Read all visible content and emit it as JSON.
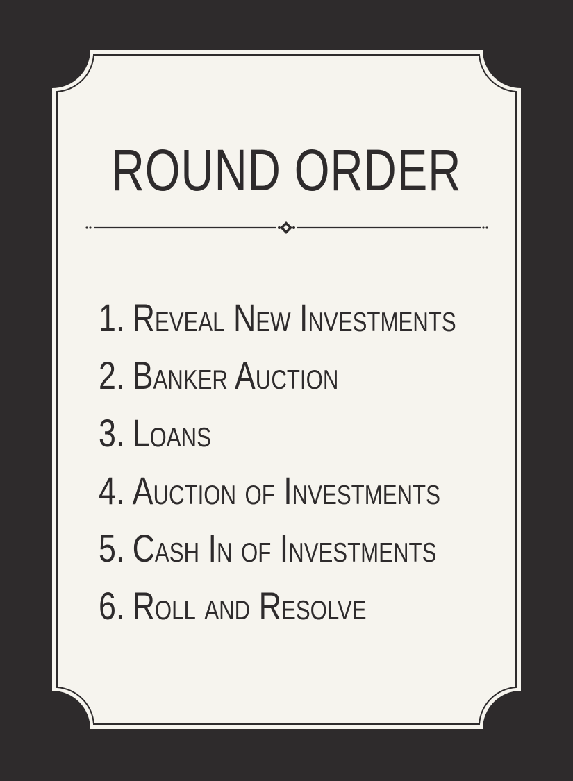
{
  "colors": {
    "background": "#2e2b2c",
    "card": "#f6f4ee",
    "ink": "#2e2b2c"
  },
  "card": {
    "title": "ROUND ORDER",
    "divider_icon": "diamond-ornament-icon",
    "steps": [
      {
        "number": "1.",
        "label": "Reveal New Investments"
      },
      {
        "number": "2.",
        "label": "Banker Auction"
      },
      {
        "number": "3.",
        "label": "Loans"
      },
      {
        "number": "4.",
        "label": "Auction of Investments"
      },
      {
        "number": "5.",
        "label": "Cash In of Investments"
      },
      {
        "number": "6.",
        "label": "Roll and Resolve"
      }
    ]
  }
}
